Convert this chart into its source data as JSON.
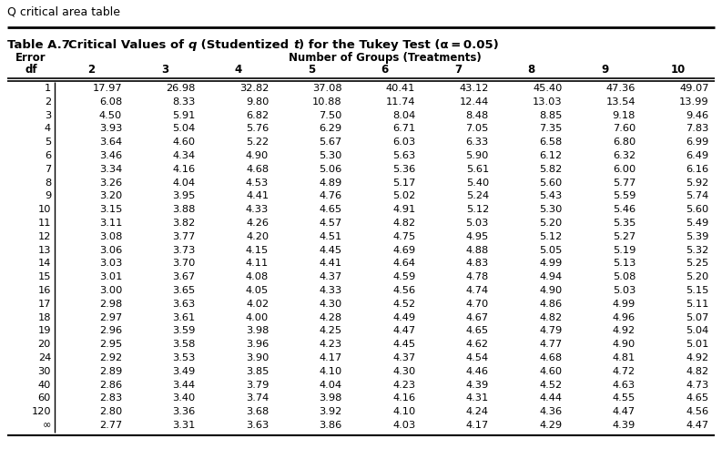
{
  "page_title": "Q critical area table",
  "table_label": "Table A.7",
  "subtitle_parts": [
    {
      "text": "Critical Values of ",
      "bold": true,
      "italic": false
    },
    {
      "text": "q",
      "bold": true,
      "italic": true
    },
    {
      "text": " (Studentized ",
      "bold": true,
      "italic": false
    },
    {
      "text": "t",
      "bold": true,
      "italic": true
    },
    {
      "text": ") for the Tukey Test (",
      "bold": true,
      "italic": false
    },
    {
      "text": "α",
      "bold": true,
      "italic": false
    },
    {
      "text": " = 0.05)",
      "bold": true,
      "italic": false
    }
  ],
  "header_left1": "Error",
  "header_left2": "df",
  "header_groups": "Number of Groups (Treatments)",
  "col_nums": [
    "2",
    "3",
    "4",
    "5",
    "6",
    "7",
    "8",
    "9",
    "10"
  ],
  "rows": [
    [
      "1",
      "17.97",
      "26.98",
      "32.82",
      "37.08",
      "40.41",
      "43.12",
      "45.40",
      "47.36",
      "49.07"
    ],
    [
      "2",
      "6.08",
      "8.33",
      "9.80",
      "10.88",
      "11.74",
      "12.44",
      "13.03",
      "13.54",
      "13.99"
    ],
    [
      "3",
      "4.50",
      "5.91",
      "6.82",
      "7.50",
      "8.04",
      "8.48",
      "8.85",
      "9.18",
      "9.46"
    ],
    [
      "4",
      "3.93",
      "5.04",
      "5.76",
      "6.29",
      "6.71",
      "7.05",
      "7.35",
      "7.60",
      "7.83"
    ],
    [
      "5",
      "3.64",
      "4.60",
      "5.22",
      "5.67",
      "6.03",
      "6.33",
      "6.58",
      "6.80",
      "6.99"
    ],
    [
      "6",
      "3.46",
      "4.34",
      "4.90",
      "5.30",
      "5.63",
      "5.90",
      "6.12",
      "6.32",
      "6.49"
    ],
    [
      "7",
      "3.34",
      "4.16",
      "4.68",
      "5.06",
      "5.36",
      "5.61",
      "5.82",
      "6.00",
      "6.16"
    ],
    [
      "8",
      "3.26",
      "4.04",
      "4.53",
      "4.89",
      "5.17",
      "5.40",
      "5.60",
      "5.77",
      "5.92"
    ],
    [
      "9",
      "3.20",
      "3.95",
      "4.41",
      "4.76",
      "5.02",
      "5.24",
      "5.43",
      "5.59",
      "5.74"
    ],
    [
      "10",
      "3.15",
      "3.88",
      "4.33",
      "4.65",
      "4.91",
      "5.12",
      "5.30",
      "5.46",
      "5.60"
    ],
    [
      "11",
      "3.11",
      "3.82",
      "4.26",
      "4.57",
      "4.82",
      "5.03",
      "5.20",
      "5.35",
      "5.49"
    ],
    [
      "12",
      "3.08",
      "3.77",
      "4.20",
      "4.51",
      "4.75",
      "4.95",
      "5.12",
      "5.27",
      "5.39"
    ],
    [
      "13",
      "3.06",
      "3.73",
      "4.15",
      "4.45",
      "4.69",
      "4.88",
      "5.05",
      "5.19",
      "5.32"
    ],
    [
      "14",
      "3.03",
      "3.70",
      "4.11",
      "4.41",
      "4.64",
      "4.83",
      "4.99",
      "5.13",
      "5.25"
    ],
    [
      "15",
      "3.01",
      "3.67",
      "4.08",
      "4.37",
      "4.59",
      "4.78",
      "4.94",
      "5.08",
      "5.20"
    ],
    [
      "16",
      "3.00",
      "3.65",
      "4.05",
      "4.33",
      "4.56",
      "4.74",
      "4.90",
      "5.03",
      "5.15"
    ],
    [
      "17",
      "2.98",
      "3.63",
      "4.02",
      "4.30",
      "4.52",
      "4.70",
      "4.86",
      "4.99",
      "5.11"
    ],
    [
      "18",
      "2.97",
      "3.61",
      "4.00",
      "4.28",
      "4.49",
      "4.67",
      "4.82",
      "4.96",
      "5.07"
    ],
    [
      "19",
      "2.96",
      "3.59",
      "3.98",
      "4.25",
      "4.47",
      "4.65",
      "4.79",
      "4.92",
      "5.04"
    ],
    [
      "20",
      "2.95",
      "3.58",
      "3.96",
      "4.23",
      "4.45",
      "4.62",
      "4.77",
      "4.90",
      "5.01"
    ],
    [
      "24",
      "2.92",
      "3.53",
      "3.90",
      "4.17",
      "4.37",
      "4.54",
      "4.68",
      "4.81",
      "4.92"
    ],
    [
      "30",
      "2.89",
      "3.49",
      "3.85",
      "4.10",
      "4.30",
      "4.46",
      "4.60",
      "4.72",
      "4.82"
    ],
    [
      "40",
      "2.86",
      "3.44",
      "3.79",
      "4.04",
      "4.23",
      "4.39",
      "4.52",
      "4.63",
      "4.73"
    ],
    [
      "60",
      "2.83",
      "3.40",
      "3.74",
      "3.98",
      "4.16",
      "4.31",
      "4.44",
      "4.55",
      "4.65"
    ],
    [
      "120",
      "2.80",
      "3.36",
      "3.68",
      "3.92",
      "4.10",
      "4.24",
      "4.36",
      "4.47",
      "4.56"
    ],
    [
      "∞",
      "2.77",
      "3.31",
      "3.63",
      "3.86",
      "4.03",
      "4.17",
      "4.29",
      "4.39",
      "4.47"
    ]
  ],
  "fig_width": 7.93,
  "fig_height": 5.04,
  "dpi": 100
}
